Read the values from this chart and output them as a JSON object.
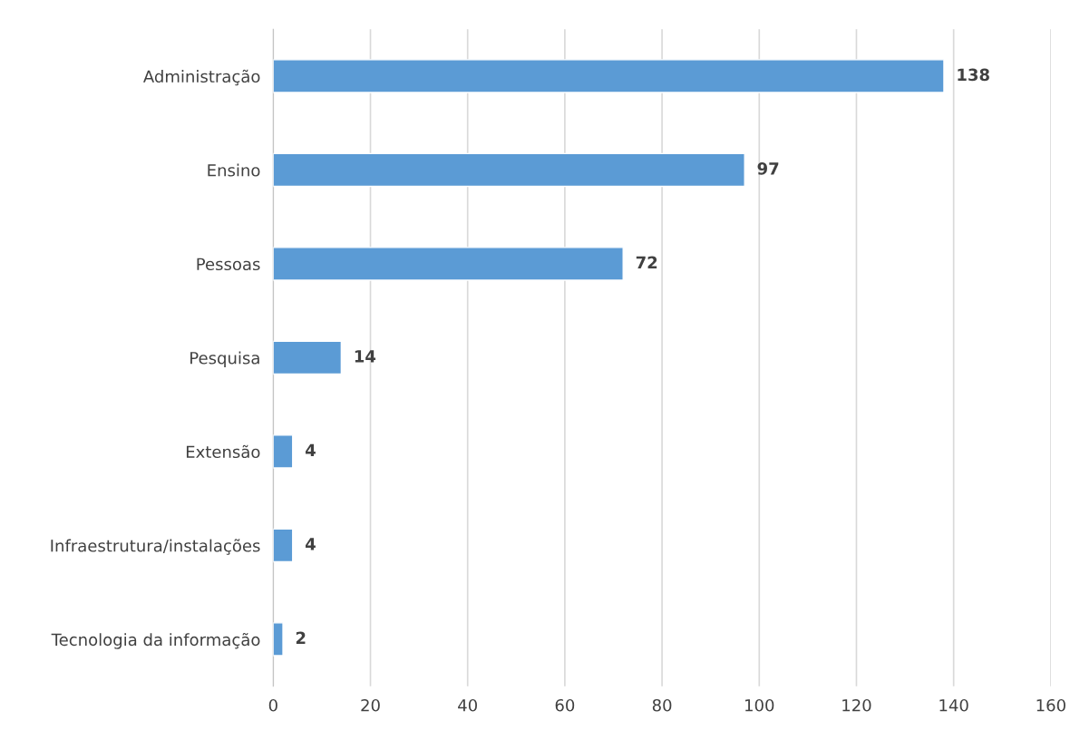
{
  "chart_data": {
    "type": "bar",
    "orientation": "horizontal",
    "categories": [
      "Administração",
      "Ensino",
      "Pessoas",
      "Pesquisa",
      "Extensão",
      "Infraestrutura/instalações",
      "Tecnologia da informação"
    ],
    "values": [
      138,
      97,
      72,
      14,
      4,
      4,
      2
    ],
    "color": "#5b9bd5",
    "xlim": [
      0,
      160
    ],
    "xticks": [
      0,
      20,
      40,
      60,
      80,
      100,
      120,
      140,
      160
    ],
    "grid": "x",
    "data_labels": true,
    "legend": false
  }
}
